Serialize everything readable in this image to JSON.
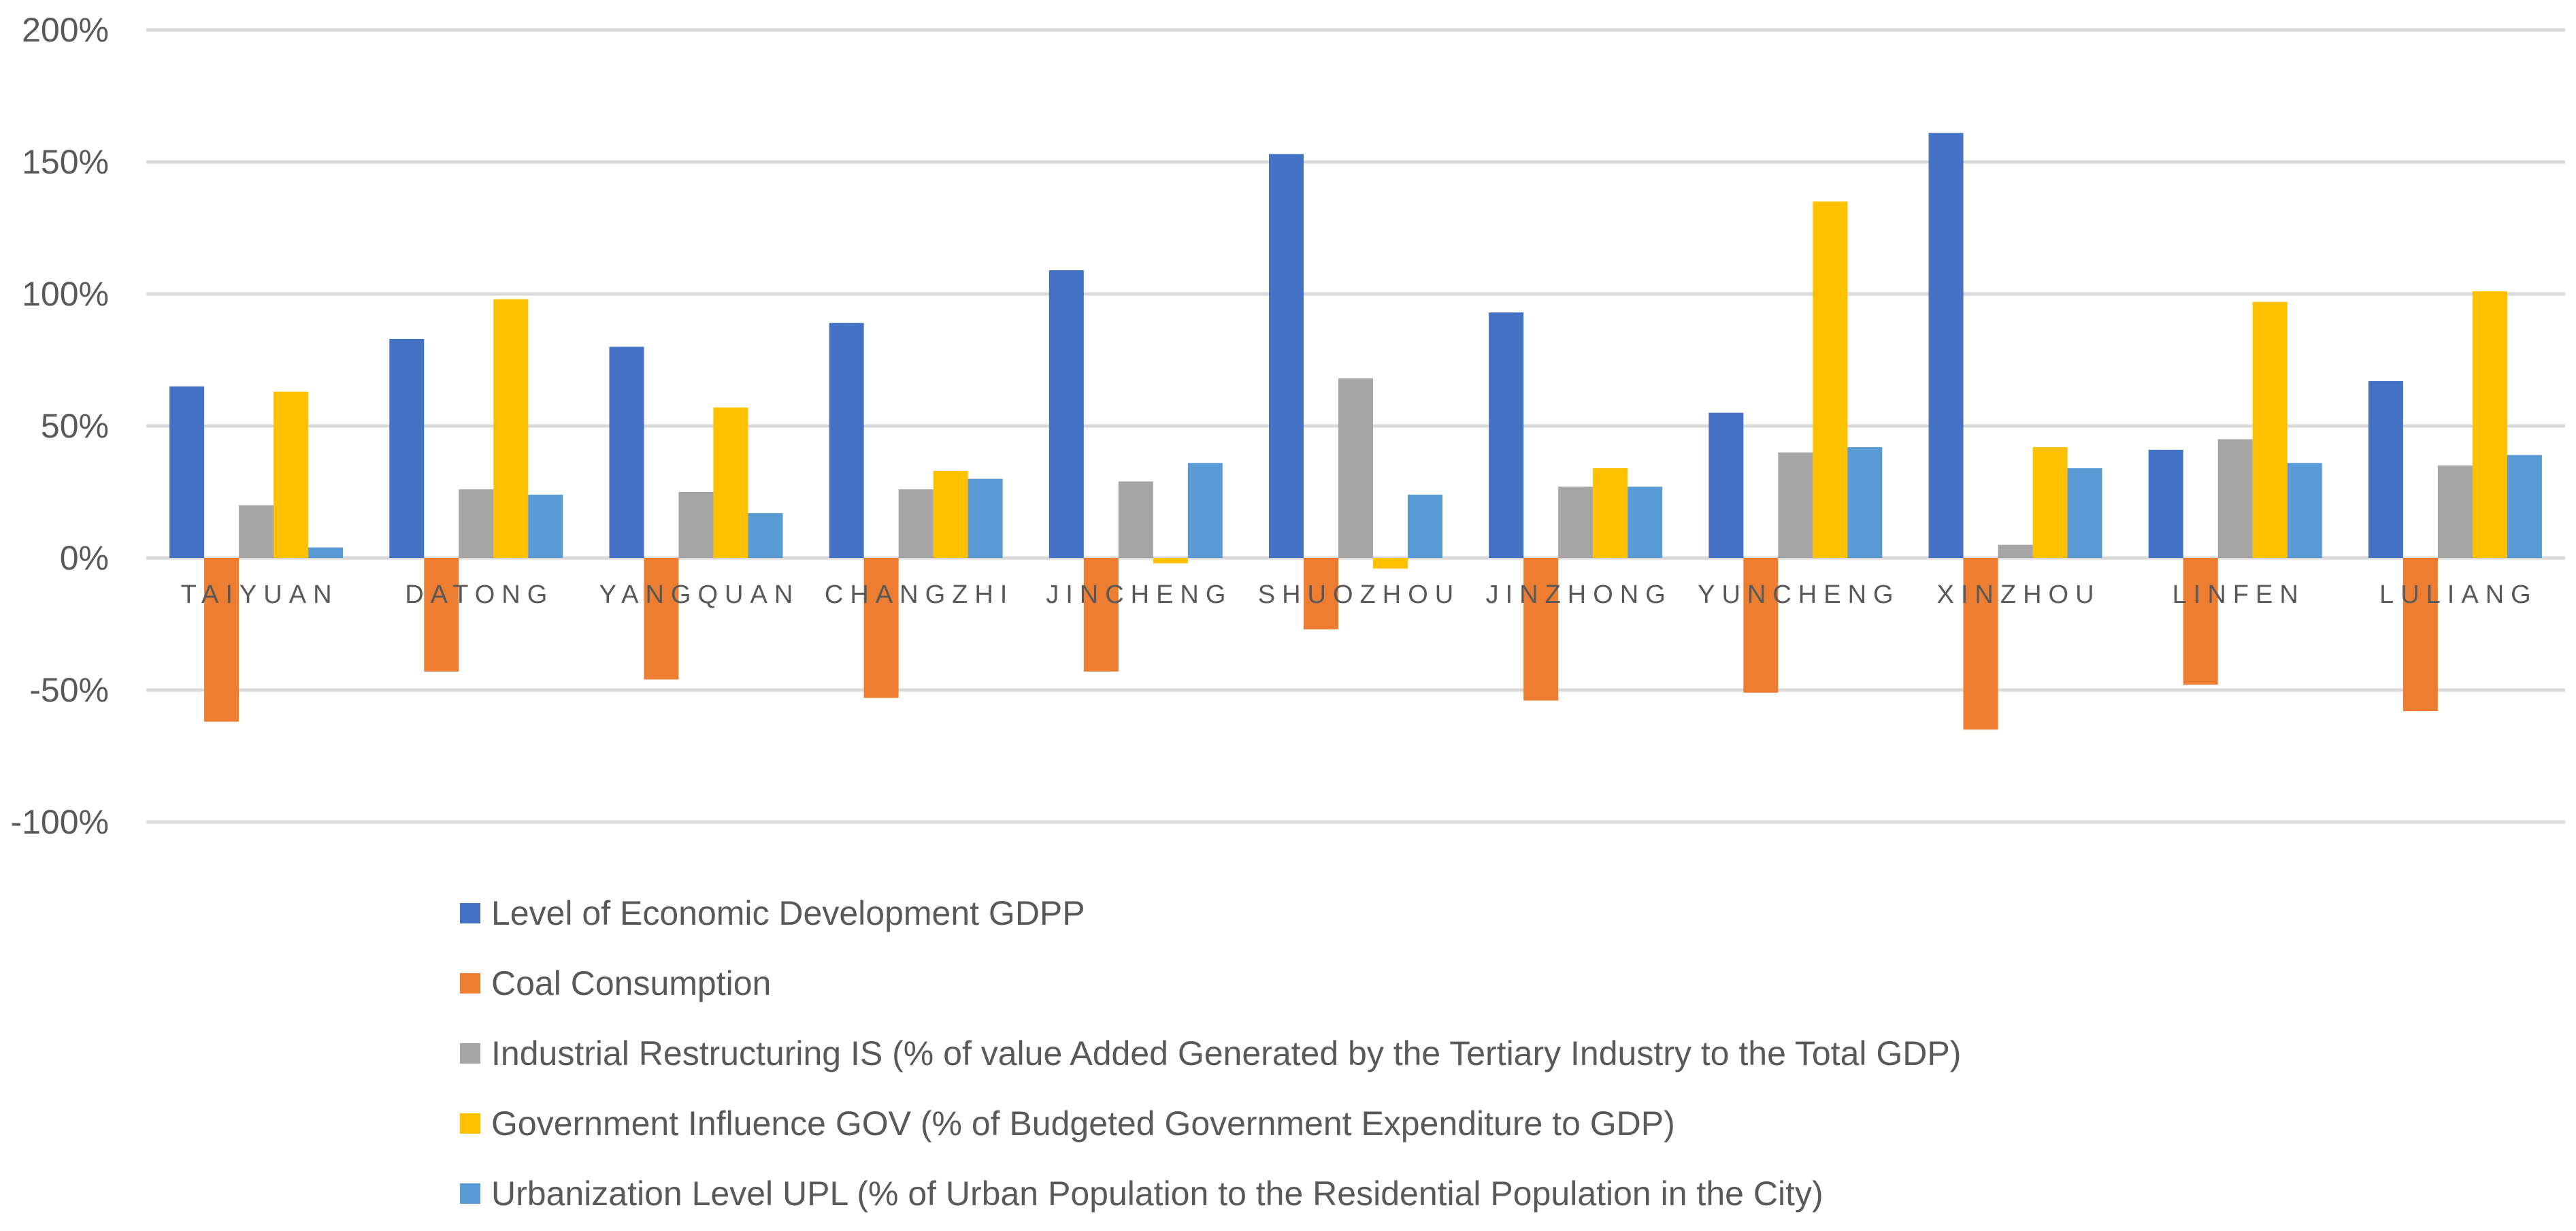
{
  "chart_data": {
    "type": "bar",
    "title": "",
    "xlabel": "",
    "ylabel": "",
    "ylim": [
      -1.0,
      2.0
    ],
    "yticks": [
      {
        "value": 2.0,
        "label": "200%"
      },
      {
        "value": 1.5,
        "label": "150%"
      },
      {
        "value": 1.0,
        "label": "100%"
      },
      {
        "value": 0.5,
        "label": "50%"
      },
      {
        "value": 0.0,
        "label": "0%"
      },
      {
        "value": -0.5,
        "label": "-50%"
      },
      {
        "value": -1.0,
        "label": "-100%"
      }
    ],
    "grid": true,
    "legend_position": "bottom",
    "categories": [
      "TAIYUAN",
      "DATONG",
      "YANGQUAN",
      "CHANGZHI",
      "JINCHENG",
      "SHUOZHOU",
      "JINZHONG",
      "YUNCHENG",
      "XINZHOU",
      "LINFEN",
      "LULIANG"
    ],
    "series": [
      {
        "name": "Level of Economic Development GDPP",
        "color": "#4472C4",
        "values": [
          0.65,
          0.83,
          0.8,
          0.89,
          1.09,
          1.53,
          0.93,
          0.55,
          1.61,
          0.41,
          0.67
        ]
      },
      {
        "name": "Coal Consumption",
        "color": "#ED7D31",
        "values": [
          -0.62,
          -0.43,
          -0.46,
          -0.53,
          -0.43,
          -0.27,
          -0.54,
          -0.51,
          -0.65,
          -0.48,
          -0.58
        ]
      },
      {
        "name": "Industrial Restructuring IS (% of value Added Generated by the Tertiary Industry to the Total GDP)",
        "color": "#A5A5A5",
        "values": [
          0.2,
          0.26,
          0.25,
          0.26,
          0.29,
          0.68,
          0.27,
          0.4,
          0.05,
          0.45,
          0.35
        ]
      },
      {
        "name": "Government Influence GOV (% of Budgeted Government Expenditure to GDP)",
        "color": "#FFC000",
        "values": [
          0.63,
          0.98,
          0.57,
          0.33,
          -0.02,
          -0.04,
          0.34,
          1.35,
          0.42,
          0.97,
          1.01
        ]
      },
      {
        "name": "Urbanization Level UPL  (% of Urban Population to the Residential Population in the City)",
        "color": "#5B9BD5",
        "values": [
          0.04,
          0.24,
          0.17,
          0.3,
          0.36,
          0.24,
          0.27,
          0.42,
          0.34,
          0.36,
          0.39
        ]
      }
    ]
  }
}
